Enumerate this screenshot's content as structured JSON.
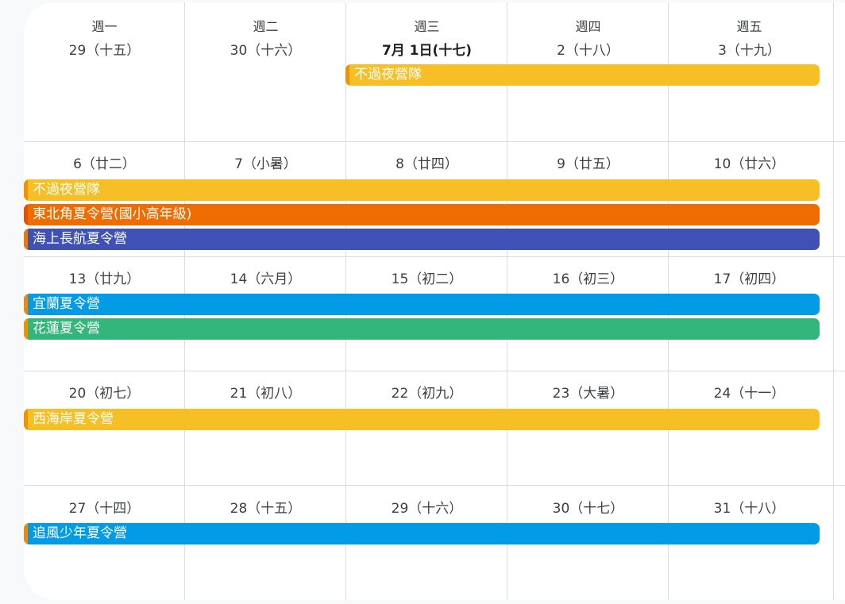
{
  "colors": {
    "yellow": "#f6bf26",
    "orange": "#ef6c00",
    "indigo": "#3f51b5",
    "blue": "#039be5",
    "green": "#33b679",
    "edge_yellow": "#f09300",
    "edge_orange": "#e65100",
    "edge_indigo": "#e67c00",
    "edge_blue": "#f08a00",
    "edge_green": "#f09300"
  },
  "weekdays": [
    "週一",
    "週二",
    "週三",
    "週四",
    "週五"
  ],
  "weeks": [
    {
      "dates": [
        "29（十五）",
        "30（十六）",
        "7月 1日(十七)",
        "2（十八）",
        "3（十九）"
      ],
      "events": [
        {
          "label": "不過夜營隊",
          "color": "yellow"
        }
      ]
    },
    {
      "dates": [
        "6（廿二）",
        "7（小暑）",
        "8（廿四）",
        "9（廿五）",
        "10（廿六）"
      ],
      "events": [
        {
          "label": "不過夜營隊",
          "color": "yellow"
        },
        {
          "label": "東北角夏令營(國小高年級)",
          "color": "orange"
        },
        {
          "label": "海上長航夏令營",
          "color": "indigo"
        }
      ]
    },
    {
      "dates": [
        "13（廿九）",
        "14（六月）",
        "15（初二）",
        "16（初三）",
        "17（初四）"
      ],
      "events": [
        {
          "label": "宜蘭夏令營",
          "color": "blue"
        },
        {
          "label": "花蓮夏令營",
          "color": "green"
        }
      ]
    },
    {
      "dates": [
        "20（初七）",
        "21（初八）",
        "22（初九）",
        "23（大暑）",
        "24（十一）"
      ],
      "events": [
        {
          "label": "西海岸夏令營",
          "color": "yellow"
        }
      ]
    },
    {
      "dates": [
        "27（十四）",
        "28（十五）",
        "29（十六）",
        "30（十七）",
        "31（十八）"
      ],
      "events": [
        {
          "label": "追風少年夏令營",
          "color": "blue"
        }
      ]
    }
  ]
}
